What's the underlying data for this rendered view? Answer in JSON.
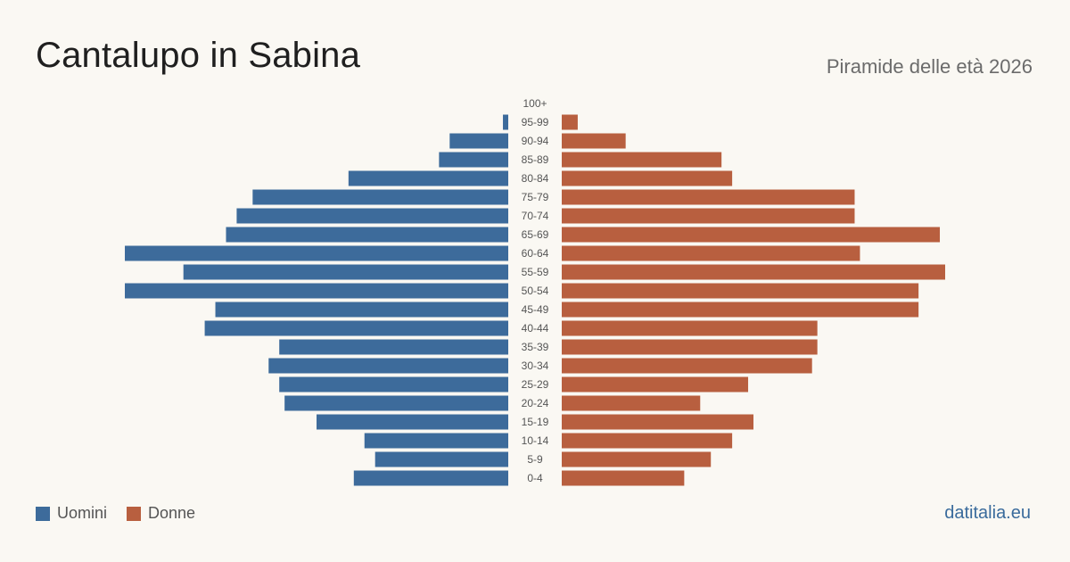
{
  "header": {
    "title": "Cantalupo in Sabina",
    "subtitle": "Piramide delle età 2026"
  },
  "legend": {
    "men_label": "Uomini",
    "women_label": "Donne"
  },
  "source": "datitalia.eu",
  "colors": {
    "men": "#3d6b9b",
    "women": "#b85f3f",
    "background": "#faf8f3"
  },
  "chart_data": {
    "type": "bar",
    "orientation": "horizontal-pyramid",
    "categories": [
      "100+",
      "95-99",
      "90-94",
      "85-89",
      "80-84",
      "75-79",
      "70-74",
      "65-69",
      "60-64",
      "55-59",
      "50-54",
      "45-49",
      "40-44",
      "35-39",
      "30-34",
      "25-29",
      "20-24",
      "15-19",
      "10-14",
      "5-9",
      "0-4"
    ],
    "series": [
      {
        "name": "Uomini",
        "values": [
          0,
          1,
          11,
          13,
          30,
          48,
          51,
          53,
          72,
          61,
          72,
          55,
          57,
          43,
          45,
          43,
          42,
          36,
          27,
          25,
          29
        ]
      },
      {
        "name": "Donne",
        "values": [
          0,
          3,
          12,
          30,
          32,
          55,
          55,
          71,
          56,
          72,
          67,
          67,
          48,
          48,
          47,
          35,
          26,
          36,
          32,
          28,
          23
        ]
      }
    ],
    "xlim": [
      0,
      72
    ],
    "grid": false,
    "legend_position": "bottom-left"
  }
}
